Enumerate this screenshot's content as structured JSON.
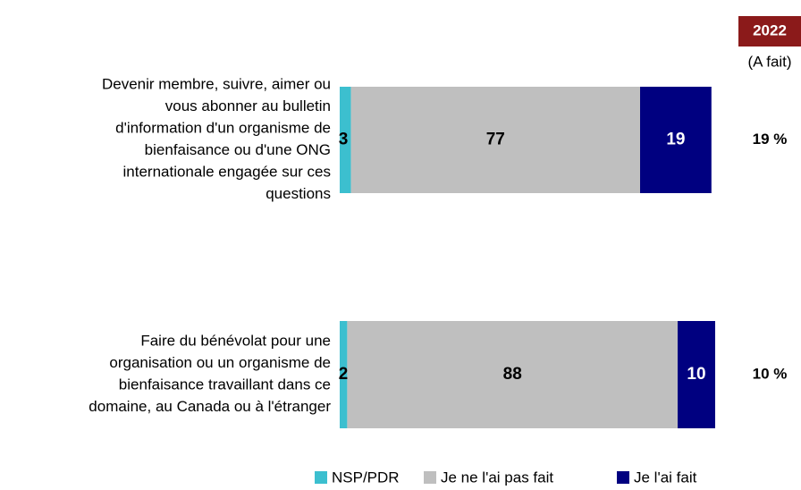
{
  "chart_data": {
    "type": "stacked_bar_horizontal",
    "categories": [
      "Devenir membre, suivre, aimer ou\nvous abonner au bulletin\nd'information d'un organisme de\nbienfaisance ou d'une ONG\ninternationale engagée sur ces\nquestions",
      "Faire du bénévolat pour une\norganisation ou un organisme de\nbienfaisance travaillant dans ce\ndomaine, au Canada ou à l'étranger"
    ],
    "series": [
      {
        "name": "NSP/PDR",
        "color": "#3cbfcf",
        "label_color": "#000000",
        "values": [
          3,
          2
        ]
      },
      {
        "name": "Je ne l'ai pas fait",
        "color": "#bfbfbf",
        "label_color": "#000000",
        "values": [
          77,
          88
        ]
      },
      {
        "name": "Je l'ai fait",
        "color": "#000080",
        "label_color": "#ffffff",
        "values": [
          19,
          10
        ]
      }
    ],
    "xlim": [
      0,
      100
    ],
    "legend": "bottom",
    "summary": {
      "title": "2022",
      "title_color": "#8b1a1a",
      "subtitle": "(A fait)",
      "labels": [
        "19 %",
        "10 %"
      ]
    }
  }
}
